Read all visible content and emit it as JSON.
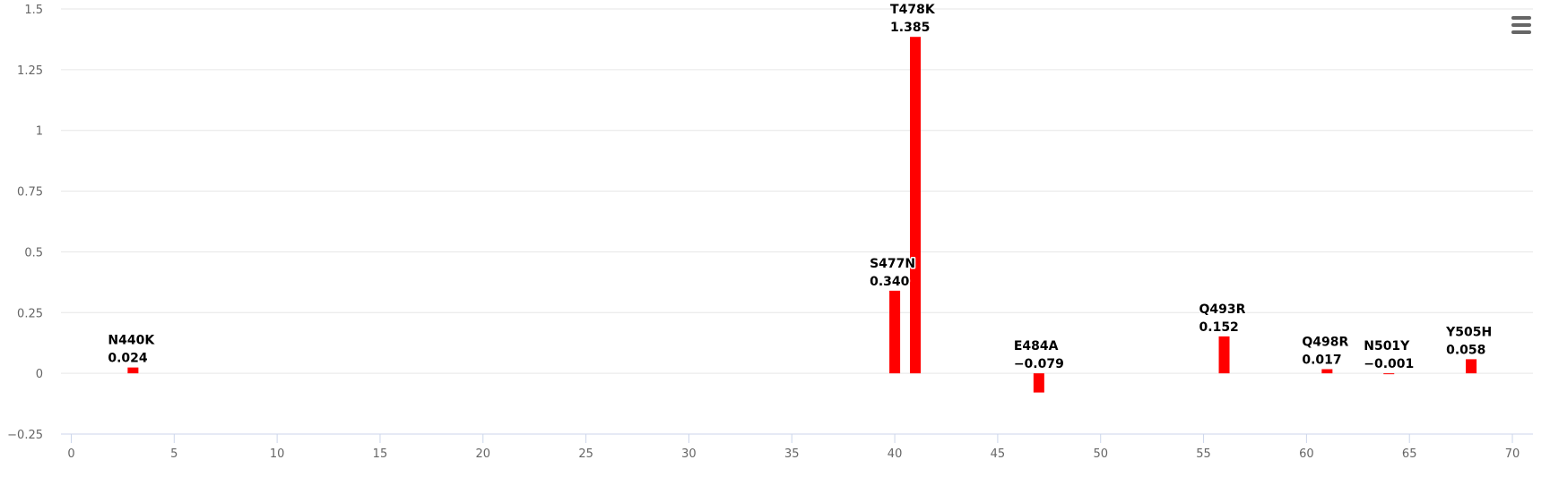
{
  "chart_data": {
    "type": "bar",
    "title": "",
    "xlabel": "",
    "ylabel": "",
    "xlim": [
      -0.5,
      71
    ],
    "ylim": [
      -0.25,
      1.5
    ],
    "x_ticks": [
      0,
      5,
      10,
      15,
      20,
      25,
      30,
      35,
      40,
      45,
      50,
      55,
      60,
      65,
      70
    ],
    "y_ticks": [
      -0.25,
      0,
      0.25,
      0.5,
      0.75,
      1,
      1.25,
      1.5
    ],
    "y_tick_labels": [
      "−0.25",
      "0",
      "0.25",
      "0.5",
      "0.75",
      "1",
      "1.25",
      "1.5"
    ],
    "grid": "horizontal",
    "legend": "none",
    "bar_color": "#ff0000",
    "points": [
      {
        "x": 3,
        "value": 0.024,
        "name": "N440K",
        "label": "0.024"
      },
      {
        "x": 40,
        "value": 0.34,
        "name": "S477N",
        "label": "0.340"
      },
      {
        "x": 41,
        "value": 1.385,
        "name": "T478K",
        "label": "1.385"
      },
      {
        "x": 47,
        "value": -0.079,
        "name": "E484A",
        "label": "−0.079"
      },
      {
        "x": 56,
        "value": 0.152,
        "name": "Q493R",
        "label": "0.152"
      },
      {
        "x": 61,
        "value": 0.017,
        "name": "Q498R",
        "label": "0.017"
      },
      {
        "x": 64,
        "value": -0.001,
        "name": "N501Y",
        "label": "−0.001"
      },
      {
        "x": 68,
        "value": 0.058,
        "name": "Y505H",
        "label": "0.058"
      }
    ]
  },
  "toolbar": {
    "menu_icon": "hamburger-menu-icon"
  }
}
